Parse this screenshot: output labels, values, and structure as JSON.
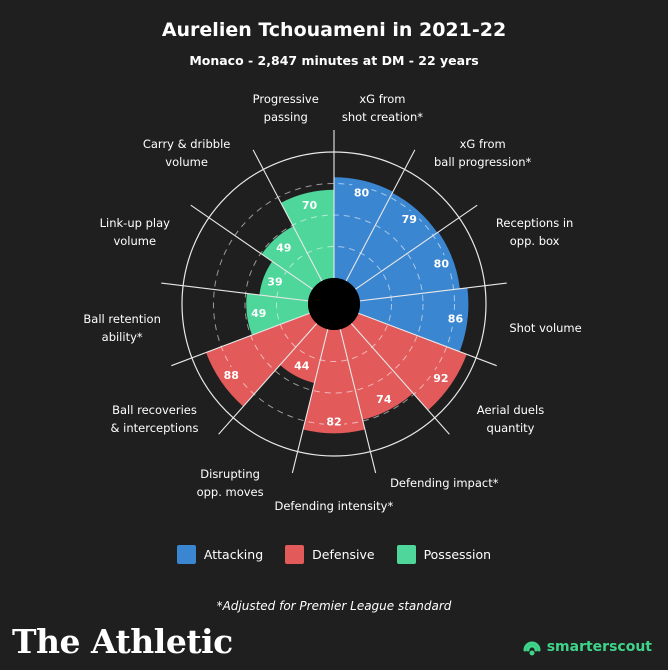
{
  "header": {
    "title": "Aurelien Tchouameni in 2021-22",
    "subtitle": "Monaco - 2,847 minutes at DM - 22 years"
  },
  "colors": {
    "attacking": "#3b86d0",
    "defensive": "#e25a5a",
    "possession": "#4fd69b",
    "background": "#1f1f1f"
  },
  "chart_data": {
    "type": "radar",
    "title": "Aurelien Tchouameni in 2021-22",
    "subtitle": "Monaco - 2,847 minutes at DM - 22 years",
    "range": [
      0,
      100
    ],
    "grid": true,
    "legend_position": "bottom",
    "categories": [
      {
        "name": "xG from shot creation*",
        "lines": [
          "xG from",
          "shot creation*"
        ],
        "value": 80,
        "group": "Attacking"
      },
      {
        "name": "xG from ball progression*",
        "lines": [
          "xG from",
          "ball progression*"
        ],
        "value": 79,
        "group": "Attacking"
      },
      {
        "name": "Receptions in opp. box",
        "lines": [
          "Receptions in",
          "opp. box"
        ],
        "value": 80,
        "group": "Attacking"
      },
      {
        "name": "Shot volume",
        "lines": [
          "Shot volume"
        ],
        "value": 86,
        "group": "Attacking"
      },
      {
        "name": "Aerial duels quantity",
        "lines": [
          "Aerial duels",
          "quantity"
        ],
        "value": 92,
        "group": "Defensive"
      },
      {
        "name": "Defending impact*",
        "lines": [
          "Defending impact*"
        ],
        "value": 74,
        "group": "Defensive"
      },
      {
        "name": "Defending intensity*",
        "lines": [
          "Defending intensity*"
        ],
        "value": 82,
        "group": "Defensive"
      },
      {
        "name": "Disrupting opp. moves",
        "lines": [
          "Disrupting",
          "opp. moves"
        ],
        "value": 44,
        "group": "Defensive"
      },
      {
        "name": "Ball recoveries & interceptions",
        "lines": [
          "Ball recoveries",
          "& interceptions"
        ],
        "value": 88,
        "group": "Defensive"
      },
      {
        "name": "Ball retention ability*",
        "lines": [
          "Ball retention",
          "ability*"
        ],
        "value": 49,
        "group": "Possession"
      },
      {
        "name": "Link-up play volume",
        "lines": [
          "Link-up play",
          "volume"
        ],
        "value": 39,
        "group": "Possession"
      },
      {
        "name": "Carry & dribble volume",
        "lines": [
          "Carry & dribble",
          "volume"
        ],
        "value": 49,
        "group": "Possession"
      },
      {
        "name": "Progressive passing",
        "lines": [
          "Progressive",
          "passing"
        ],
        "value": 70,
        "group": "Possession"
      }
    ],
    "legend": [
      {
        "label": "Attacking",
        "group": "Attacking"
      },
      {
        "label": "Defensive",
        "group": "Defensive"
      },
      {
        "label": "Possession",
        "group": "Possession"
      }
    ]
  },
  "footnote": "*Adjusted for Premier League standard",
  "branding": {
    "publisher": "The Athletic",
    "provider": "smarterscout"
  }
}
